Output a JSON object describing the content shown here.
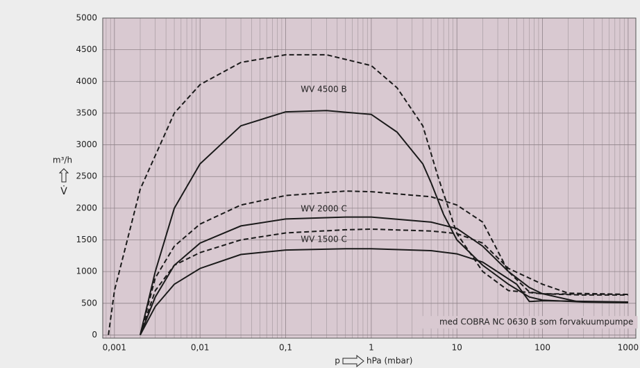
{
  "chart_data": {
    "type": "line",
    "xscale": "log",
    "xlim": [
      0.00073,
      1230
    ],
    "ylim": [
      -50,
      5000
    ],
    "xticks": [
      {
        "value": 0.001,
        "label": "0,001"
      },
      {
        "value": 0.01,
        "label": "0,01"
      },
      {
        "value": 0.1,
        "label": "0,1"
      },
      1,
      10,
      100,
      1000
    ],
    "yticks": [
      0,
      500,
      1000,
      1500,
      2000,
      2500,
      3000,
      3500,
      4000,
      4500,
      5000
    ],
    "grid": true,
    "plot_color": "#d9c9d1",
    "y_label": "m³/h",
    "y_symbol": "V̇",
    "x_label_p": "p",
    "x_label": "hPa (mbar)",
    "annotations": [
      {
        "text": "WV 4500 B",
        "x": 0.15,
        "y": 3870
      },
      {
        "text": "WV 2000 C",
        "x": 0.15,
        "y": 1985
      },
      {
        "text": "WV 1500 C",
        "x": 0.15,
        "y": 1505
      },
      {
        "text": "med COBRA NC 0630 B som forvakuumpumpe",
        "x": 1150,
        "y": 200
      }
    ],
    "series": [
      {
        "color": "#1a1a1a",
        "dashed": true,
        "x": [
          0.00085,
          0.001,
          0.002,
          0.005,
          0.01,
          0.03,
          0.1,
          0.3,
          1,
          2,
          4,
          6,
          10,
          20,
          40,
          100,
          300,
          1000
        ],
        "values": [
          0,
          700,
          2300,
          3500,
          3950,
          4300,
          4420,
          4420,
          4250,
          3900,
          3300,
          2500,
          1600,
          1000,
          700,
          650,
          630,
          630
        ]
      },
      {
        "color": "#1a1a1a",
        "dashed": false,
        "x": [
          0.002,
          0.003,
          0.005,
          0.01,
          0.03,
          0.1,
          0.3,
          1,
          2,
          4,
          5,
          7,
          10,
          20,
          40,
          70,
          100,
          300,
          1000
        ],
        "values": [
          0,
          1000,
          2000,
          2700,
          3300,
          3520,
          3540,
          3480,
          3200,
          2700,
          2400,
          1900,
          1500,
          1100,
          800,
          600,
          550,
          520,
          510
        ]
      },
      {
        "color": "#1a1a1a",
        "dashed": true,
        "x": [
          0.002,
          0.003,
          0.005,
          0.01,
          0.03,
          0.1,
          0.5,
          1,
          5,
          10,
          20,
          40,
          70,
          100,
          1000
        ],
        "values": [
          0,
          900,
          1400,
          1750,
          2050,
          2200,
          2270,
          2260,
          2180,
          2050,
          1780,
          1000,
          680,
          650,
          640
        ]
      },
      {
        "color": "#1a1a1a",
        "dashed": false,
        "x": [
          0.002,
          0.003,
          0.005,
          0.01,
          0.03,
          0.1,
          0.5,
          1,
          5,
          10,
          20,
          40,
          70,
          100,
          250,
          1000
        ],
        "values": [
          0,
          600,
          1100,
          1450,
          1720,
          1830,
          1860,
          1860,
          1780,
          1680,
          1400,
          1000,
          750,
          650,
          530,
          510
        ]
      },
      {
        "color": "#1a1a1a",
        "dashed": true,
        "x": [
          0.002,
          0.003,
          0.005,
          0.01,
          0.03,
          0.1,
          0.5,
          1,
          5,
          10,
          20,
          40,
          100,
          200,
          1000
        ],
        "values": [
          0,
          700,
          1100,
          1300,
          1500,
          1610,
          1660,
          1670,
          1640,
          1600,
          1450,
          1050,
          800,
          660,
          640
        ]
      },
      {
        "color": "#1a1a1a",
        "dashed": false,
        "x": [
          0.002,
          0.003,
          0.005,
          0.01,
          0.03,
          0.1,
          0.5,
          1,
          5,
          10,
          20,
          50,
          70,
          75,
          100,
          1000
        ],
        "values": [
          0,
          450,
          800,
          1050,
          1270,
          1340,
          1360,
          1360,
          1330,
          1280,
          1150,
          800,
          530,
          530,
          540,
          520
        ]
      }
    ]
  }
}
